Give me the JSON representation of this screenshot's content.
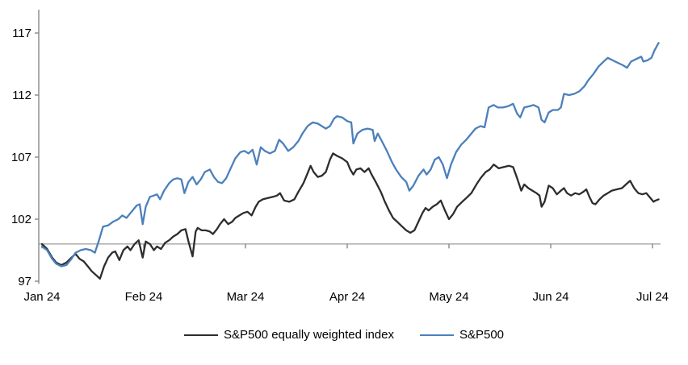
{
  "chart_data": {
    "type": "line",
    "title": "",
    "xlabel": "",
    "ylabel": "",
    "x_unit": "months since Jan 2024 (0 = Jan 24)",
    "xtick_labels": [
      "Jan 24",
      "Feb 24",
      "Mar 24",
      "Apr 24",
      "May 24",
      "Jun 24",
      "Jul 24"
    ],
    "xtick_positions": [
      0,
      1,
      2,
      3,
      4,
      5,
      6
    ],
    "ytick_values": [
      97,
      102,
      107,
      112,
      117
    ],
    "ylim": [
      97,
      117.6
    ],
    "xlim": [
      0,
      6.06
    ],
    "baseline_value": 100,
    "grid": "off",
    "legend_position": "bottom-center",
    "colors": {
      "sp500": "#4b80bb",
      "sp500_equal_weight": "#2d2d2d",
      "baseline": "#a3a3a3",
      "axis": "#808080",
      "text": "#000000"
    },
    "series": [
      {
        "name": "S&P500 equally weighted index",
        "color_key": "sp500_equal_weight",
        "points": [
          [
            0,
            100
          ],
          [
            0.05,
            99.6
          ],
          [
            0.1,
            98.9
          ],
          [
            0.14,
            98.5
          ],
          [
            0.19,
            98.3
          ],
          [
            0.24,
            98.5
          ],
          [
            0.29,
            98.9
          ],
          [
            0.33,
            99.2
          ],
          [
            0.37,
            98.8
          ],
          [
            0.41,
            98.6
          ],
          [
            0.45,
            98.2
          ],
          [
            0.49,
            97.8
          ],
          [
            0.53,
            97.5
          ],
          [
            0.57,
            97.2
          ],
          [
            0.61,
            98.2
          ],
          [
            0.65,
            98.9
          ],
          [
            0.69,
            99.3
          ],
          [
            0.72,
            99.4
          ],
          [
            0.76,
            98.7
          ],
          [
            0.8,
            99.5
          ],
          [
            0.84,
            99.8
          ],
          [
            0.87,
            99.5
          ],
          [
            0.91,
            100
          ],
          [
            0.95,
            100.3
          ],
          [
            0.99,
            98.9
          ],
          [
            1.02,
            100.2
          ],
          [
            1.06,
            100
          ],
          [
            1.1,
            99.5
          ],
          [
            1.13,
            99.8
          ],
          [
            1.17,
            99.6
          ],
          [
            1.21,
            100.1
          ],
          [
            1.25,
            100.3
          ],
          [
            1.29,
            100.6
          ],
          [
            1.33,
            100.8
          ],
          [
            1.37,
            101.1
          ],
          [
            1.41,
            101.2
          ],
          [
            1.44,
            100.2
          ],
          [
            1.48,
            99
          ],
          [
            1.51,
            101
          ],
          [
            1.53,
            101.3
          ],
          [
            1.57,
            101.1
          ],
          [
            1.61,
            101.1
          ],
          [
            1.65,
            101
          ],
          [
            1.68,
            100.8
          ],
          [
            1.72,
            101.2
          ],
          [
            1.75,
            101.6
          ],
          [
            1.79,
            102
          ],
          [
            1.83,
            101.6
          ],
          [
            1.87,
            101.8
          ],
          [
            1.9,
            102.1
          ],
          [
            1.94,
            102.3
          ],
          [
            1.98,
            102.5
          ],
          [
            2.02,
            102.6
          ],
          [
            2.06,
            102.3
          ],
          [
            2.1,
            103
          ],
          [
            2.13,
            103.4
          ],
          [
            2.17,
            103.6
          ],
          [
            2.22,
            103.7
          ],
          [
            2.27,
            103.8
          ],
          [
            2.31,
            103.9
          ],
          [
            2.34,
            104.1
          ],
          [
            2.38,
            103.5
          ],
          [
            2.43,
            103.4
          ],
          [
            2.48,
            103.6
          ],
          [
            2.52,
            104.2
          ],
          [
            2.57,
            104.9
          ],
          [
            2.61,
            105.7
          ],
          [
            2.64,
            106.3
          ],
          [
            2.67,
            105.8
          ],
          [
            2.71,
            105.4
          ],
          [
            2.75,
            105.5
          ],
          [
            2.79,
            105.8
          ],
          [
            2.83,
            106.8
          ],
          [
            2.86,
            107.3
          ],
          [
            2.9,
            107.1
          ],
          [
            2.95,
            106.9
          ],
          [
            3,
            106.6
          ],
          [
            3.03,
            106
          ],
          [
            3.06,
            105.6
          ],
          [
            3.09,
            106
          ],
          [
            3.13,
            106.1
          ],
          [
            3.17,
            105.8
          ],
          [
            3.21,
            106.1
          ],
          [
            3.24,
            105.6
          ],
          [
            3.28,
            105
          ],
          [
            3.33,
            104.2
          ],
          [
            3.37,
            103.4
          ],
          [
            3.41,
            102.7
          ],
          [
            3.45,
            102.1
          ],
          [
            3.49,
            101.8
          ],
          [
            3.54,
            101.4
          ],
          [
            3.58,
            101.1
          ],
          [
            3.62,
            100.9
          ],
          [
            3.66,
            101.1
          ],
          [
            3.7,
            101.8
          ],
          [
            3.74,
            102.5
          ],
          [
            3.77,
            102.9
          ],
          [
            3.8,
            102.7
          ],
          [
            3.84,
            103
          ],
          [
            3.88,
            103.2
          ],
          [
            3.92,
            103.5
          ],
          [
            3.96,
            102.7
          ],
          [
            4,
            102
          ],
          [
            4.04,
            102.4
          ],
          [
            4.08,
            103
          ],
          [
            4.13,
            103.4
          ],
          [
            4.17,
            103.7
          ],
          [
            4.22,
            104.1
          ],
          [
            4.27,
            104.8
          ],
          [
            4.31,
            105.3
          ],
          [
            4.36,
            105.8
          ],
          [
            4.4,
            106
          ],
          [
            4.44,
            106.4
          ],
          [
            4.49,
            106.1
          ],
          [
            4.54,
            106.2
          ],
          [
            4.59,
            106.3
          ],
          [
            4.63,
            106.2
          ],
          [
            4.67,
            105.3
          ],
          [
            4.71,
            104.3
          ],
          [
            4.74,
            104.8
          ],
          [
            4.78,
            104.5
          ],
          [
            4.82,
            104.3
          ],
          [
            4.86,
            104.1
          ],
          [
            4.89,
            103.9
          ],
          [
            4.91,
            103
          ],
          [
            4.94,
            103.4
          ],
          [
            4.98,
            104.7
          ],
          [
            5.02,
            104.5
          ],
          [
            5.06,
            104
          ],
          [
            5.1,
            104.3
          ],
          [
            5.13,
            104.5
          ],
          [
            5.16,
            104.1
          ],
          [
            5.2,
            103.9
          ],
          [
            5.24,
            104.1
          ],
          [
            5.28,
            104
          ],
          [
            5.32,
            104.2
          ],
          [
            5.35,
            104.4
          ],
          [
            5.38,
            103.8
          ],
          [
            5.41,
            103.3
          ],
          [
            5.44,
            103.2
          ],
          [
            5.48,
            103.6
          ],
          [
            5.52,
            103.9
          ],
          [
            5.56,
            104.1
          ],
          [
            5.6,
            104.3
          ],
          [
            5.65,
            104.4
          ],
          [
            5.7,
            104.5
          ],
          [
            5.74,
            104.8
          ],
          [
            5.78,
            105.1
          ],
          [
            5.82,
            104.5
          ],
          [
            5.86,
            104.1
          ],
          [
            5.9,
            104
          ],
          [
            5.94,
            104.1
          ],
          [
            5.98,
            103.7
          ],
          [
            6.01,
            103.4
          ],
          [
            6.03,
            103.5
          ],
          [
            6.06,
            103.6
          ]
        ]
      },
      {
        "name": "S&P500",
        "color_key": "sp500",
        "points": [
          [
            0,
            99.8
          ],
          [
            0.05,
            99.5
          ],
          [
            0.1,
            98.8
          ],
          [
            0.14,
            98.4
          ],
          [
            0.19,
            98.2
          ],
          [
            0.24,
            98.3
          ],
          [
            0.29,
            98.8
          ],
          [
            0.33,
            99.3
          ],
          [
            0.38,
            99.5
          ],
          [
            0.43,
            99.6
          ],
          [
            0.48,
            99.5
          ],
          [
            0.52,
            99.3
          ],
          [
            0.56,
            100.3
          ],
          [
            0.6,
            101.4
          ],
          [
            0.65,
            101.5
          ],
          [
            0.7,
            101.8
          ],
          [
            0.75,
            102
          ],
          [
            0.79,
            102.3
          ],
          [
            0.83,
            102.1
          ],
          [
            0.88,
            102.6
          ],
          [
            0.93,
            103.1
          ],
          [
            0.96,
            103.2
          ],
          [
            0.99,
            101.6
          ],
          [
            1.02,
            103
          ],
          [
            1.06,
            103.8
          ],
          [
            1.1,
            103.9
          ],
          [
            1.13,
            104
          ],
          [
            1.16,
            103.6
          ],
          [
            1.2,
            104.3
          ],
          [
            1.25,
            104.9
          ],
          [
            1.29,
            105.2
          ],
          [
            1.33,
            105.3
          ],
          [
            1.37,
            105.2
          ],
          [
            1.4,
            104.1
          ],
          [
            1.44,
            105
          ],
          [
            1.48,
            105.4
          ],
          [
            1.52,
            104.8
          ],
          [
            1.56,
            105.2
          ],
          [
            1.6,
            105.8
          ],
          [
            1.65,
            106
          ],
          [
            1.69,
            105.4
          ],
          [
            1.73,
            105
          ],
          [
            1.77,
            104.9
          ],
          [
            1.81,
            105.3
          ],
          [
            1.86,
            106.2
          ],
          [
            1.9,
            106.9
          ],
          [
            1.95,
            107.4
          ],
          [
            1.99,
            107.5
          ],
          [
            2.03,
            107.3
          ],
          [
            2.07,
            107.6
          ],
          [
            2.11,
            106.4
          ],
          [
            2.15,
            107.8
          ],
          [
            2.19,
            107.5
          ],
          [
            2.24,
            107.3
          ],
          [
            2.29,
            107.5
          ],
          [
            2.33,
            108.4
          ],
          [
            2.37,
            108.1
          ],
          [
            2.42,
            107.5
          ],
          [
            2.47,
            107.8
          ],
          [
            2.52,
            108.3
          ],
          [
            2.56,
            108.9
          ],
          [
            2.61,
            109.5
          ],
          [
            2.66,
            109.8
          ],
          [
            2.71,
            109.7
          ],
          [
            2.75,
            109.5
          ],
          [
            2.79,
            109.3
          ],
          [
            2.83,
            109.5
          ],
          [
            2.87,
            110.1
          ],
          [
            2.9,
            110.3
          ],
          [
            2.95,
            110.2
          ],
          [
            3,
            109.9
          ],
          [
            3.04,
            109.8
          ],
          [
            3.06,
            108.1
          ],
          [
            3.1,
            108.9
          ],
          [
            3.15,
            109.2
          ],
          [
            3.2,
            109.3
          ],
          [
            3.25,
            109.2
          ],
          [
            3.27,
            108.3
          ],
          [
            3.3,
            108.9
          ],
          [
            3.34,
            108.3
          ],
          [
            3.39,
            107.5
          ],
          [
            3.44,
            106.6
          ],
          [
            3.48,
            106
          ],
          [
            3.53,
            105.4
          ],
          [
            3.58,
            105
          ],
          [
            3.61,
            104.3
          ],
          [
            3.65,
            104.7
          ],
          [
            3.7,
            105.5
          ],
          [
            3.75,
            106
          ],
          [
            3.78,
            105.6
          ],
          [
            3.82,
            106
          ],
          [
            3.86,
            106.8
          ],
          [
            3.9,
            107
          ],
          [
            3.94,
            106.4
          ],
          [
            3.98,
            105.3
          ],
          [
            4.02,
            106.4
          ],
          [
            4.07,
            107.4
          ],
          [
            4.12,
            108
          ],
          [
            4.17,
            108.4
          ],
          [
            4.21,
            108.8
          ],
          [
            4.26,
            109.3
          ],
          [
            4.31,
            109.5
          ],
          [
            4.35,
            109.4
          ],
          [
            4.39,
            111
          ],
          [
            4.44,
            111.2
          ],
          [
            4.48,
            111
          ],
          [
            4.53,
            111
          ],
          [
            4.58,
            111.1
          ],
          [
            4.63,
            111.3
          ],
          [
            4.67,
            110.5
          ],
          [
            4.7,
            110.2
          ],
          [
            4.74,
            111
          ],
          [
            4.79,
            111.1
          ],
          [
            4.83,
            111.2
          ],
          [
            4.88,
            111
          ],
          [
            4.91,
            110
          ],
          [
            4.94,
            109.8
          ],
          [
            4.98,
            110.6
          ],
          [
            5.02,
            110.8
          ],
          [
            5.07,
            110.8
          ],
          [
            5.1,
            111
          ],
          [
            5.13,
            112.1
          ],
          [
            5.18,
            112
          ],
          [
            5.23,
            112.1
          ],
          [
            5.28,
            112.3
          ],
          [
            5.33,
            112.7
          ],
          [
            5.37,
            113.2
          ],
          [
            5.42,
            113.7
          ],
          [
            5.47,
            114.3
          ],
          [
            5.52,
            114.7
          ],
          [
            5.56,
            115
          ],
          [
            5.61,
            114.8
          ],
          [
            5.66,
            114.6
          ],
          [
            5.71,
            114.4
          ],
          [
            5.75,
            114.2
          ],
          [
            5.79,
            114.7
          ],
          [
            5.84,
            114.9
          ],
          [
            5.89,
            115.1
          ],
          [
            5.91,
            114.7
          ],
          [
            5.95,
            114.8
          ],
          [
            5.99,
            115
          ],
          [
            6.02,
            115.6
          ],
          [
            6.06,
            116.2
          ]
        ]
      }
    ]
  },
  "legend": {
    "items": [
      {
        "label": "S&P500 equally weighted index",
        "color_key": "sp500_equal_weight"
      },
      {
        "label": "S&P500",
        "color_key": "sp500"
      }
    ]
  }
}
